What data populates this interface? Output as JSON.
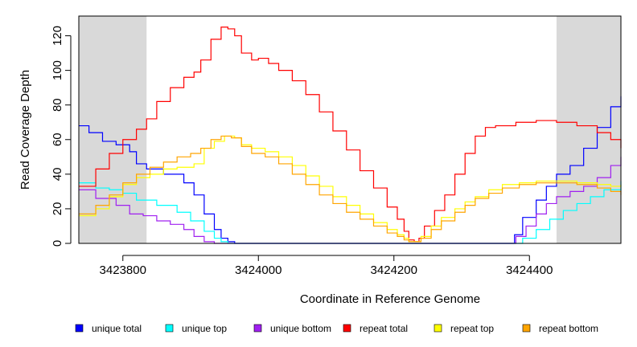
{
  "chart_data": {
    "type": "line",
    "xlabel": "Coordinate in Reference Genome",
    "ylabel": "Read Coverage Depth",
    "xlim": [
      3423735,
      3424535
    ],
    "ylim": [
      0,
      130
    ],
    "x_ticks": [
      3423800,
      3424000,
      3424200,
      3424400
    ],
    "x_tick_labels": [
      "3423800",
      "3424000",
      "3424200",
      "3424400"
    ],
    "y_ticks": [
      0,
      20,
      40,
      60,
      80,
      100,
      120
    ],
    "y_tick_labels": [
      "0",
      "20",
      "40",
      "60",
      "80",
      "100",
      "120"
    ],
    "shaded_regions": [
      [
        3423735,
        3423835
      ],
      [
        3424440,
        3424535
      ]
    ],
    "line_style": "step",
    "legend_position": "bottom",
    "series": [
      {
        "name": "unique total",
        "color": "#0000ff",
        "points": [
          [
            3423735,
            68
          ],
          [
            3423750,
            64
          ],
          [
            3423770,
            59
          ],
          [
            3423790,
            57
          ],
          [
            3423810,
            53
          ],
          [
            3423820,
            46
          ],
          [
            3423835,
            43
          ],
          [
            3423860,
            40
          ],
          [
            3423890,
            35
          ],
          [
            3423905,
            28
          ],
          [
            3423920,
            17
          ],
          [
            3423935,
            8
          ],
          [
            3423945,
            3
          ],
          [
            3423955,
            1
          ],
          [
            3423965,
            0
          ],
          [
            3424370,
            0
          ],
          [
            3424378,
            5
          ],
          [
            3424390,
            15
          ],
          [
            3424410,
            25
          ],
          [
            3424425,
            33
          ],
          [
            3424440,
            40
          ],
          [
            3424460,
            45
          ],
          [
            3424480,
            55
          ],
          [
            3424500,
            67
          ],
          [
            3424520,
            79
          ],
          [
            3424535,
            85
          ]
        ]
      },
      {
        "name": "unique top",
        "color": "#00ffff",
        "points": [
          [
            3423735,
            35
          ],
          [
            3423760,
            32
          ],
          [
            3423780,
            31
          ],
          [
            3423800,
            29
          ],
          [
            3423820,
            25
          ],
          [
            3423850,
            22
          ],
          [
            3423880,
            18
          ],
          [
            3423900,
            13
          ],
          [
            3423920,
            7
          ],
          [
            3423935,
            3
          ],
          [
            3423945,
            1
          ],
          [
            3423955,
            0
          ],
          [
            3424380,
            0
          ],
          [
            3424390,
            3
          ],
          [
            3424410,
            8
          ],
          [
            3424430,
            14
          ],
          [
            3424450,
            19
          ],
          [
            3424470,
            23
          ],
          [
            3424490,
            27
          ],
          [
            3424510,
            31
          ],
          [
            3424535,
            36
          ]
        ]
      },
      {
        "name": "unique bottom",
        "color": "#a020f0",
        "points": [
          [
            3423735,
            31
          ],
          [
            3423760,
            26
          ],
          [
            3423790,
            22
          ],
          [
            3423810,
            17
          ],
          [
            3423830,
            16
          ],
          [
            3423850,
            13
          ],
          [
            3423870,
            11
          ],
          [
            3423890,
            8
          ],
          [
            3423905,
            4
          ],
          [
            3423920,
            1
          ],
          [
            3423935,
            0
          ],
          [
            3424370,
            0
          ],
          [
            3424380,
            4
          ],
          [
            3424395,
            10
          ],
          [
            3424410,
            17
          ],
          [
            3424425,
            23
          ],
          [
            3424440,
            27
          ],
          [
            3424460,
            30
          ],
          [
            3424480,
            33
          ],
          [
            3424500,
            38
          ],
          [
            3424520,
            45
          ],
          [
            3424535,
            50
          ]
        ]
      },
      {
        "name": "repeat total",
        "color": "#ff0000",
        "points": [
          [
            3423735,
            33
          ],
          [
            3423760,
            43
          ],
          [
            3423780,
            52
          ],
          [
            3423800,
            60
          ],
          [
            3423820,
            66
          ],
          [
            3423835,
            72
          ],
          [
            3423850,
            82
          ],
          [
            3423870,
            90
          ],
          [
            3423890,
            96
          ],
          [
            3423905,
            99
          ],
          [
            3423915,
            106
          ],
          [
            3423930,
            118
          ],
          [
            3423945,
            125
          ],
          [
            3423955,
            124
          ],
          [
            3423965,
            120
          ],
          [
            3423975,
            110
          ],
          [
            3423990,
            106
          ],
          [
            3424000,
            107
          ],
          [
            3424015,
            104
          ],
          [
            3424030,
            100
          ],
          [
            3424050,
            94
          ],
          [
            3424070,
            86
          ],
          [
            3424090,
            76
          ],
          [
            3424110,
            65
          ],
          [
            3424130,
            54
          ],
          [
            3424150,
            42
          ],
          [
            3424170,
            32
          ],
          [
            3424190,
            21
          ],
          [
            3424205,
            14
          ],
          [
            3424215,
            7
          ],
          [
            3424222,
            2
          ],
          [
            3424230,
            1
          ],
          [
            3424237,
            3
          ],
          [
            3424245,
            10
          ],
          [
            3424260,
            19
          ],
          [
            3424275,
            28
          ],
          [
            3424290,
            40
          ],
          [
            3424305,
            52
          ],
          [
            3424320,
            62
          ],
          [
            3424335,
            67
          ],
          [
            3424350,
            68
          ],
          [
            3424380,
            70
          ],
          [
            3424410,
            71
          ],
          [
            3424440,
            70
          ],
          [
            3424470,
            68
          ],
          [
            3424500,
            64
          ],
          [
            3424520,
            60
          ],
          [
            3424535,
            55
          ]
        ]
      },
      {
        "name": "repeat top",
        "color": "#ffff00",
        "points": [
          [
            3423735,
            16
          ],
          [
            3423760,
            20
          ],
          [
            3423780,
            27
          ],
          [
            3423800,
            34
          ],
          [
            3423820,
            38
          ],
          [
            3423840,
            40
          ],
          [
            3423860,
            43
          ],
          [
            3423880,
            44
          ],
          [
            3423905,
            46
          ],
          [
            3423920,
            55
          ],
          [
            3423935,
            59
          ],
          [
            3423950,
            62
          ],
          [
            3423965,
            61
          ],
          [
            3423975,
            57
          ],
          [
            3423990,
            55
          ],
          [
            3424010,
            53
          ],
          [
            3424030,
            50
          ],
          [
            3424050,
            45
          ],
          [
            3424070,
            39
          ],
          [
            3424090,
            33
          ],
          [
            3424110,
            27
          ],
          [
            3424130,
            22
          ],
          [
            3424150,
            17
          ],
          [
            3424170,
            12
          ],
          [
            3424190,
            8
          ],
          [
            3424205,
            5
          ],
          [
            3424215,
            3
          ],
          [
            3424222,
            1
          ],
          [
            3424232,
            1
          ],
          [
            3424240,
            4
          ],
          [
            3424255,
            10
          ],
          [
            3424270,
            15
          ],
          [
            3424290,
            20
          ],
          [
            3424305,
            24
          ],
          [
            3424320,
            27
          ],
          [
            3424340,
            31
          ],
          [
            3424360,
            34
          ],
          [
            3424385,
            35
          ],
          [
            3424410,
            36
          ],
          [
            3424440,
            36
          ],
          [
            3424470,
            35
          ],
          [
            3424500,
            34
          ],
          [
            3424520,
            33
          ],
          [
            3424535,
            34
          ]
        ]
      },
      {
        "name": "repeat bottom",
        "color": "#ffa500",
        "points": [
          [
            3423735,
            17
          ],
          [
            3423760,
            22
          ],
          [
            3423780,
            28
          ],
          [
            3423800,
            35
          ],
          [
            3423820,
            40
          ],
          [
            3423840,
            44
          ],
          [
            3423860,
            47
          ],
          [
            3423880,
            50
          ],
          [
            3423900,
            52
          ],
          [
            3423915,
            55
          ],
          [
            3423930,
            60
          ],
          [
            3423945,
            62
          ],
          [
            3423960,
            61
          ],
          [
            3423975,
            56
          ],
          [
            3423990,
            52
          ],
          [
            3424010,
            50
          ],
          [
            3424030,
            46
          ],
          [
            3424050,
            40
          ],
          [
            3424070,
            34
          ],
          [
            3424090,
            28
          ],
          [
            3424110,
            23
          ],
          [
            3424130,
            18
          ],
          [
            3424150,
            14
          ],
          [
            3424170,
            10
          ],
          [
            3424190,
            6
          ],
          [
            3424205,
            4
          ],
          [
            3424215,
            2
          ],
          [
            3424222,
            1
          ],
          [
            3424232,
            1
          ],
          [
            3424240,
            3
          ],
          [
            3424255,
            8
          ],
          [
            3424270,
            13
          ],
          [
            3424290,
            18
          ],
          [
            3424305,
            22
          ],
          [
            3424320,
            26
          ],
          [
            3424340,
            29
          ],
          [
            3424360,
            32
          ],
          [
            3424385,
            34
          ],
          [
            3424410,
            35
          ],
          [
            3424440,
            35
          ],
          [
            3424470,
            34
          ],
          [
            3424500,
            32
          ],
          [
            3424520,
            30
          ],
          [
            3424535,
            28
          ]
        ]
      }
    ]
  }
}
